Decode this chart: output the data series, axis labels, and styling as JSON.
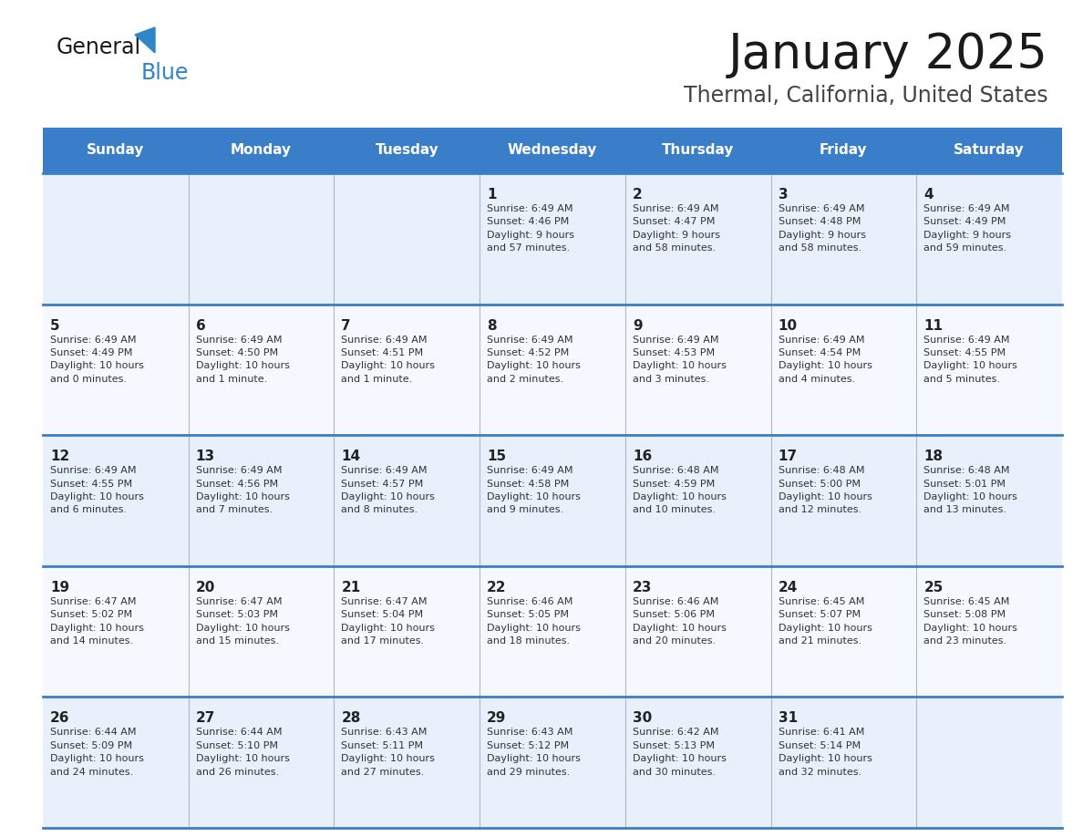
{
  "title": "January 2025",
  "subtitle": "Thermal, California, United States",
  "header_color": "#3a7dc9",
  "header_text_color": "#ffffff",
  "cell_bg_color": "#e8f0fb",
  "cell_bg_alt": "#f5f8fe",
  "border_color": "#3a7dc9",
  "text_color": "#222222",
  "info_color": "#333333",
  "day_headers": [
    "Sunday",
    "Monday",
    "Tuesday",
    "Wednesday",
    "Thursday",
    "Friday",
    "Saturday"
  ],
  "weeks": [
    [
      {
        "day": "",
        "info": ""
      },
      {
        "day": "",
        "info": ""
      },
      {
        "day": "",
        "info": ""
      },
      {
        "day": "1",
        "info": "Sunrise: 6:49 AM\nSunset: 4:46 PM\nDaylight: 9 hours\nand 57 minutes."
      },
      {
        "day": "2",
        "info": "Sunrise: 6:49 AM\nSunset: 4:47 PM\nDaylight: 9 hours\nand 58 minutes."
      },
      {
        "day": "3",
        "info": "Sunrise: 6:49 AM\nSunset: 4:48 PM\nDaylight: 9 hours\nand 58 minutes."
      },
      {
        "day": "4",
        "info": "Sunrise: 6:49 AM\nSunset: 4:49 PM\nDaylight: 9 hours\nand 59 minutes."
      }
    ],
    [
      {
        "day": "5",
        "info": "Sunrise: 6:49 AM\nSunset: 4:49 PM\nDaylight: 10 hours\nand 0 minutes."
      },
      {
        "day": "6",
        "info": "Sunrise: 6:49 AM\nSunset: 4:50 PM\nDaylight: 10 hours\nand 1 minute."
      },
      {
        "day": "7",
        "info": "Sunrise: 6:49 AM\nSunset: 4:51 PM\nDaylight: 10 hours\nand 1 minute."
      },
      {
        "day": "8",
        "info": "Sunrise: 6:49 AM\nSunset: 4:52 PM\nDaylight: 10 hours\nand 2 minutes."
      },
      {
        "day": "9",
        "info": "Sunrise: 6:49 AM\nSunset: 4:53 PM\nDaylight: 10 hours\nand 3 minutes."
      },
      {
        "day": "10",
        "info": "Sunrise: 6:49 AM\nSunset: 4:54 PM\nDaylight: 10 hours\nand 4 minutes."
      },
      {
        "day": "11",
        "info": "Sunrise: 6:49 AM\nSunset: 4:55 PM\nDaylight: 10 hours\nand 5 minutes."
      }
    ],
    [
      {
        "day": "12",
        "info": "Sunrise: 6:49 AM\nSunset: 4:55 PM\nDaylight: 10 hours\nand 6 minutes."
      },
      {
        "day": "13",
        "info": "Sunrise: 6:49 AM\nSunset: 4:56 PM\nDaylight: 10 hours\nand 7 minutes."
      },
      {
        "day": "14",
        "info": "Sunrise: 6:49 AM\nSunset: 4:57 PM\nDaylight: 10 hours\nand 8 minutes."
      },
      {
        "day": "15",
        "info": "Sunrise: 6:49 AM\nSunset: 4:58 PM\nDaylight: 10 hours\nand 9 minutes."
      },
      {
        "day": "16",
        "info": "Sunrise: 6:48 AM\nSunset: 4:59 PM\nDaylight: 10 hours\nand 10 minutes."
      },
      {
        "day": "17",
        "info": "Sunrise: 6:48 AM\nSunset: 5:00 PM\nDaylight: 10 hours\nand 12 minutes."
      },
      {
        "day": "18",
        "info": "Sunrise: 6:48 AM\nSunset: 5:01 PM\nDaylight: 10 hours\nand 13 minutes."
      }
    ],
    [
      {
        "day": "19",
        "info": "Sunrise: 6:47 AM\nSunset: 5:02 PM\nDaylight: 10 hours\nand 14 minutes."
      },
      {
        "day": "20",
        "info": "Sunrise: 6:47 AM\nSunset: 5:03 PM\nDaylight: 10 hours\nand 15 minutes."
      },
      {
        "day": "21",
        "info": "Sunrise: 6:47 AM\nSunset: 5:04 PM\nDaylight: 10 hours\nand 17 minutes."
      },
      {
        "day": "22",
        "info": "Sunrise: 6:46 AM\nSunset: 5:05 PM\nDaylight: 10 hours\nand 18 minutes."
      },
      {
        "day": "23",
        "info": "Sunrise: 6:46 AM\nSunset: 5:06 PM\nDaylight: 10 hours\nand 20 minutes."
      },
      {
        "day": "24",
        "info": "Sunrise: 6:45 AM\nSunset: 5:07 PM\nDaylight: 10 hours\nand 21 minutes."
      },
      {
        "day": "25",
        "info": "Sunrise: 6:45 AM\nSunset: 5:08 PM\nDaylight: 10 hours\nand 23 minutes."
      }
    ],
    [
      {
        "day": "26",
        "info": "Sunrise: 6:44 AM\nSunset: 5:09 PM\nDaylight: 10 hours\nand 24 minutes."
      },
      {
        "day": "27",
        "info": "Sunrise: 6:44 AM\nSunset: 5:10 PM\nDaylight: 10 hours\nand 26 minutes."
      },
      {
        "day": "28",
        "info": "Sunrise: 6:43 AM\nSunset: 5:11 PM\nDaylight: 10 hours\nand 27 minutes."
      },
      {
        "day": "29",
        "info": "Sunrise: 6:43 AM\nSunset: 5:12 PM\nDaylight: 10 hours\nand 29 minutes."
      },
      {
        "day": "30",
        "info": "Sunrise: 6:42 AM\nSunset: 5:13 PM\nDaylight: 10 hours\nand 30 minutes."
      },
      {
        "day": "31",
        "info": "Sunrise: 6:41 AM\nSunset: 5:14 PM\nDaylight: 10 hours\nand 32 minutes."
      },
      {
        "day": "",
        "info": ""
      }
    ]
  ]
}
